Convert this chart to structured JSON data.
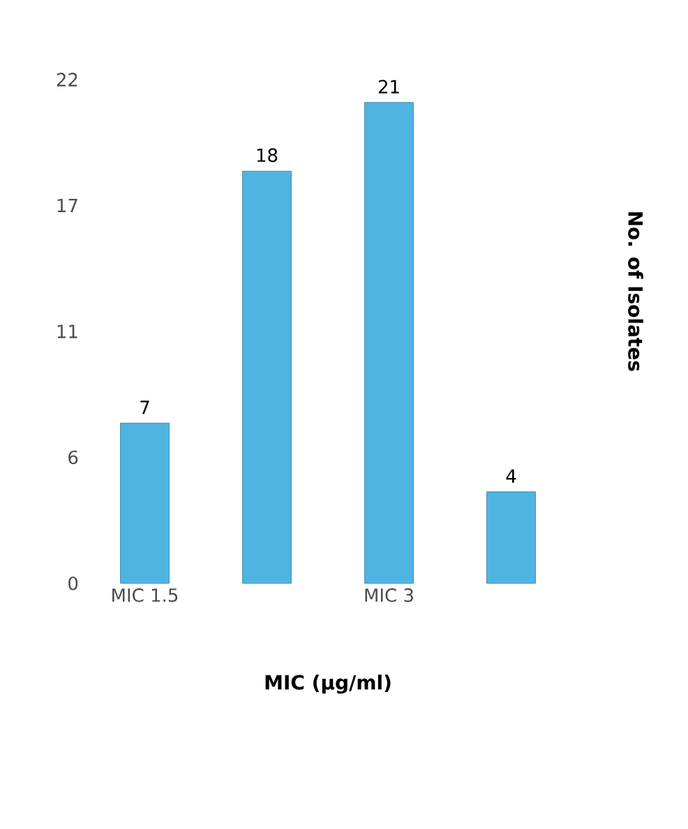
{
  "chart_data": {
    "type": "bar",
    "xlabel": "MIC (µg/ml)",
    "ylabel": "No. of Isolates",
    "categories": [
      "MIC 1.5",
      null,
      "MIC 3",
      null
    ],
    "values": [
      7,
      18,
      21,
      4
    ],
    "color": "#4eb4e2",
    "ylim": [
      0,
      22
    ],
    "yticks": [
      0,
      {
        "value": 5.5,
        "label": "6"
      },
      11,
      {
        "value": 16.5,
        "label": "17"
      },
      22
    ],
    "data_labels": true
  }
}
